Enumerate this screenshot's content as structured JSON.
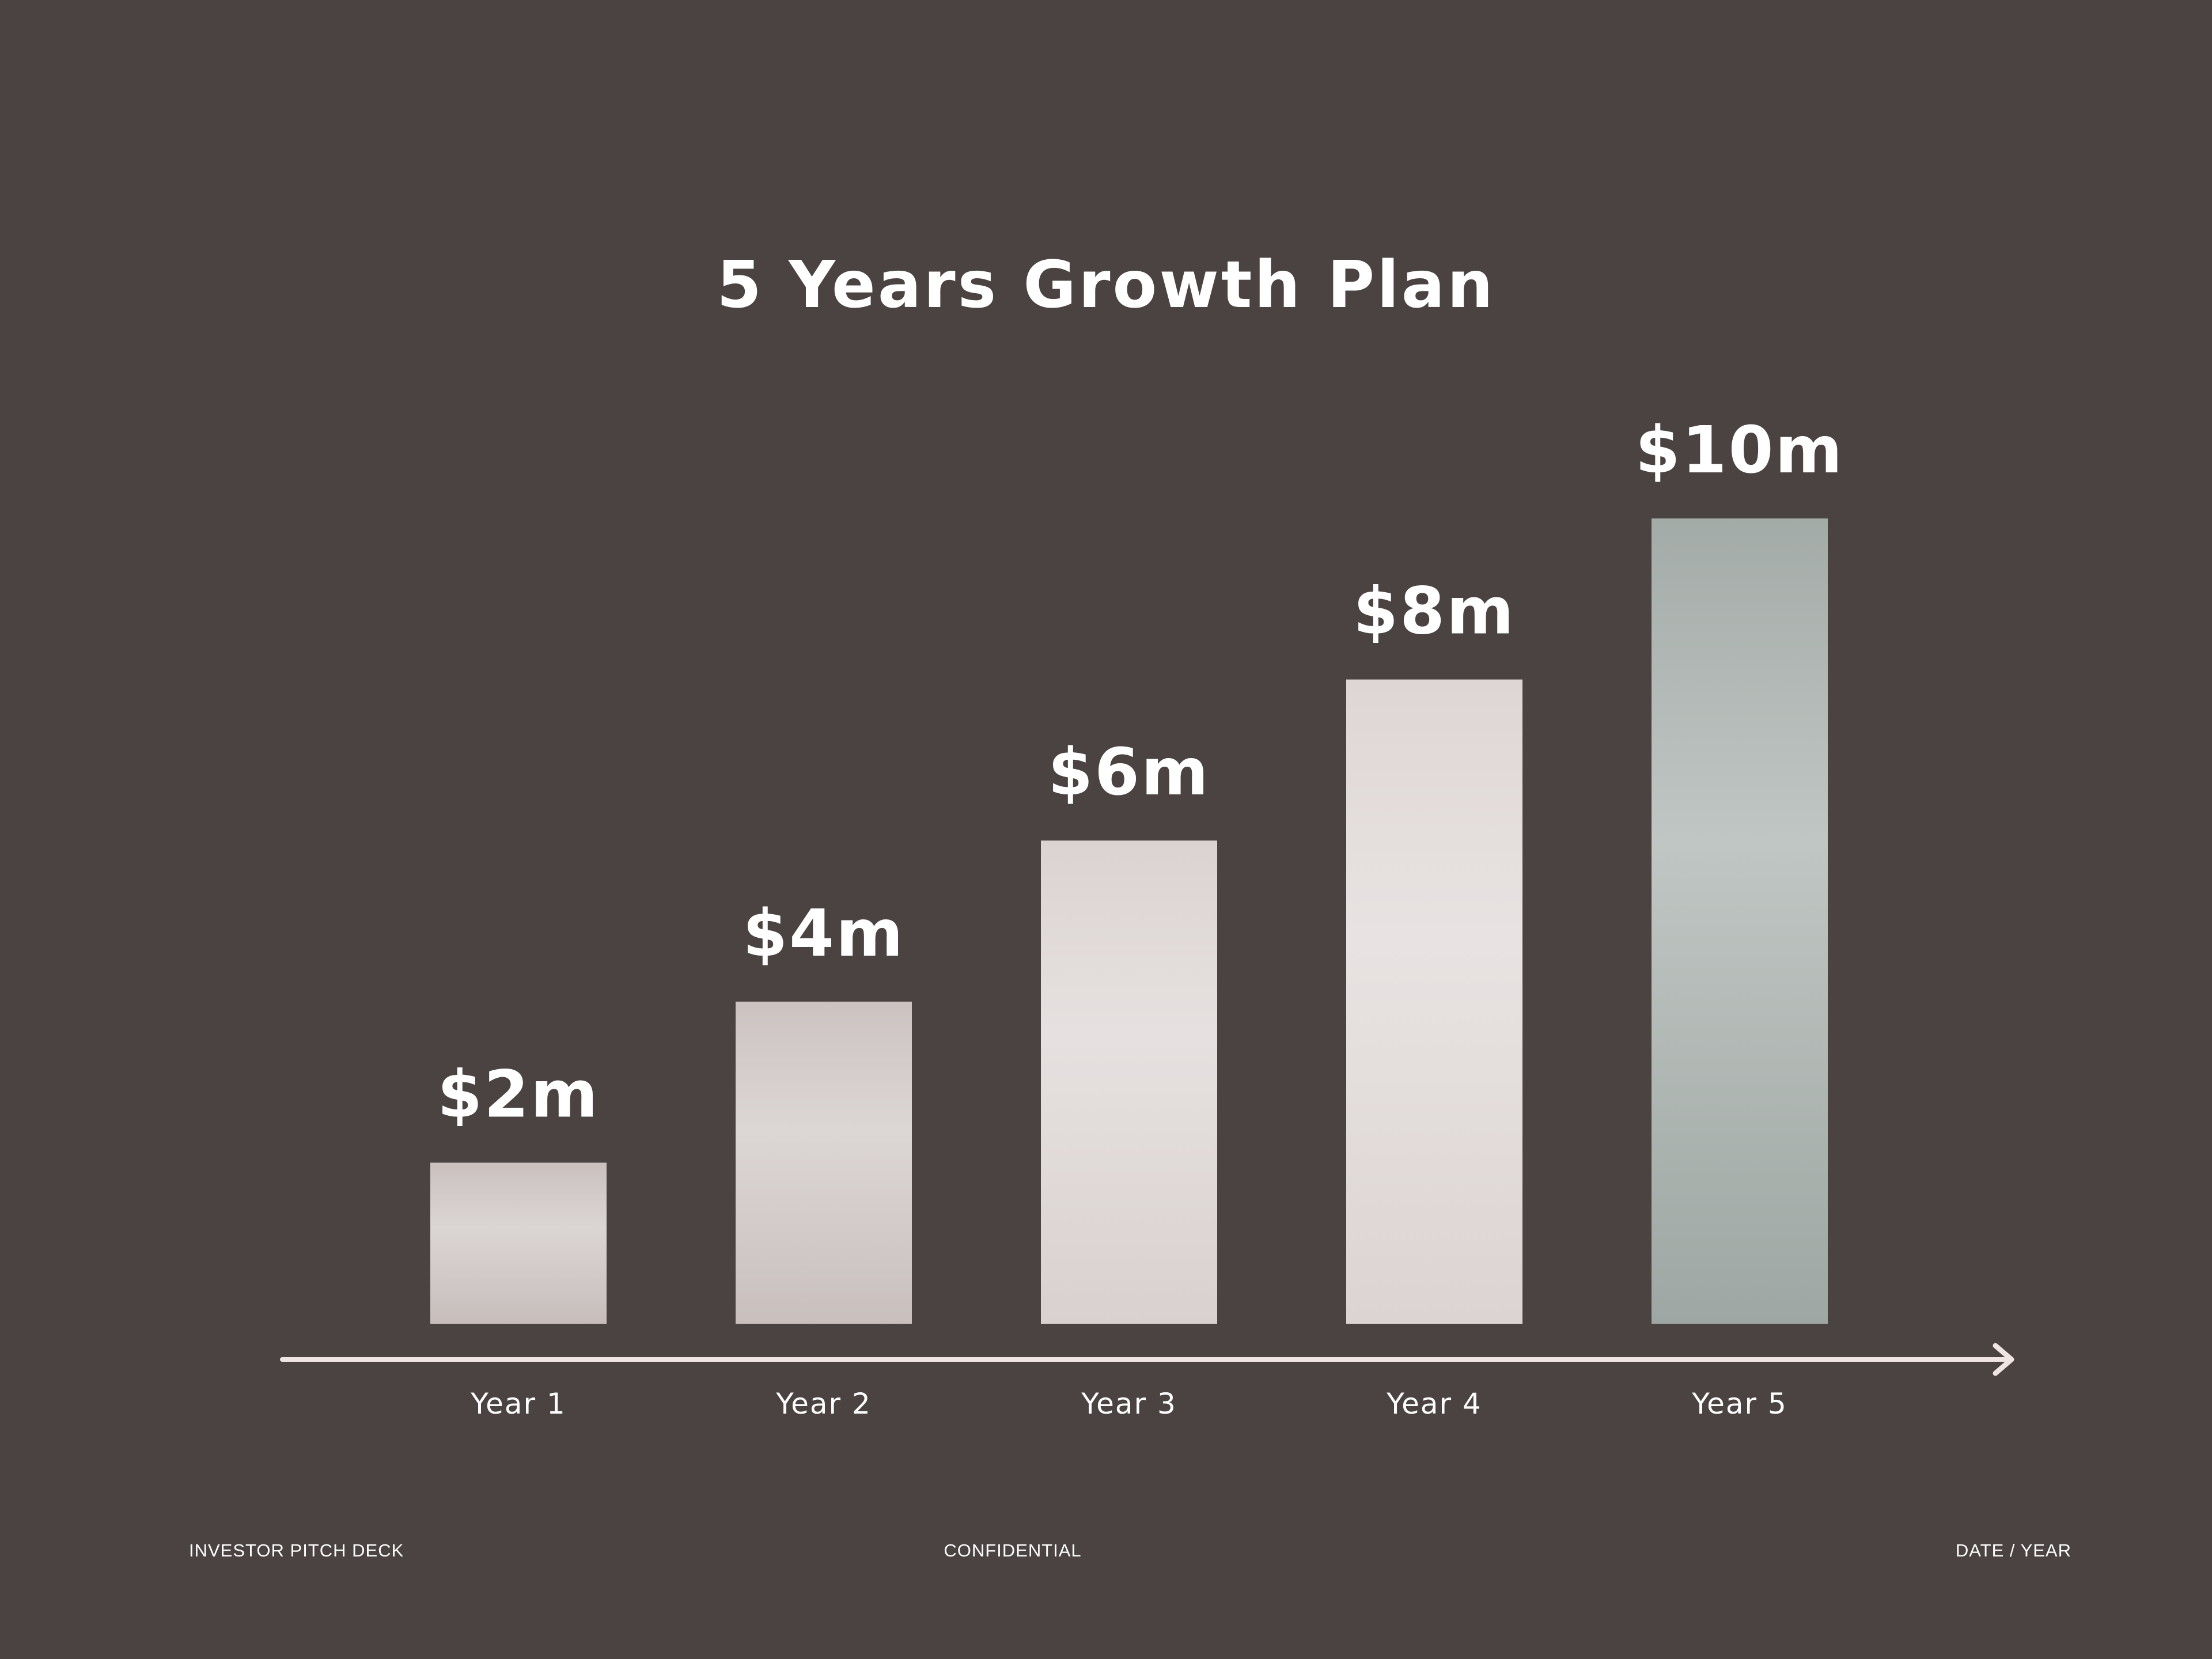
{
  "slide": {
    "background_color": "#4a4341",
    "footer": {
      "left": "INVESTOR PITCH DECK",
      "center": "CONFIDENTIAL",
      "right": "DATE / YEAR"
    }
  },
  "chart_data": {
    "type": "bar",
    "title": "5 Years Growth Plan",
    "xlabel": "",
    "ylabel": "",
    "categories": [
      "Year 1",
      "Year 2",
      "Year 3",
      "Year 4",
      "Year 5"
    ],
    "values": [
      2,
      4,
      6,
      8,
      10
    ],
    "value_labels": [
      "$2m",
      "$4m",
      "$6m",
      "$8m",
      "$10m"
    ],
    "unit": "$m",
    "ylim": [
      0,
      10
    ],
    "grid": false,
    "legend": "none",
    "bar_colors": [
      "#c7bebc",
      "#c9c0be",
      "#d9d1cf",
      "#dcd4d2",
      "#9ea7a3"
    ],
    "axis_color": "#efe6e4"
  }
}
